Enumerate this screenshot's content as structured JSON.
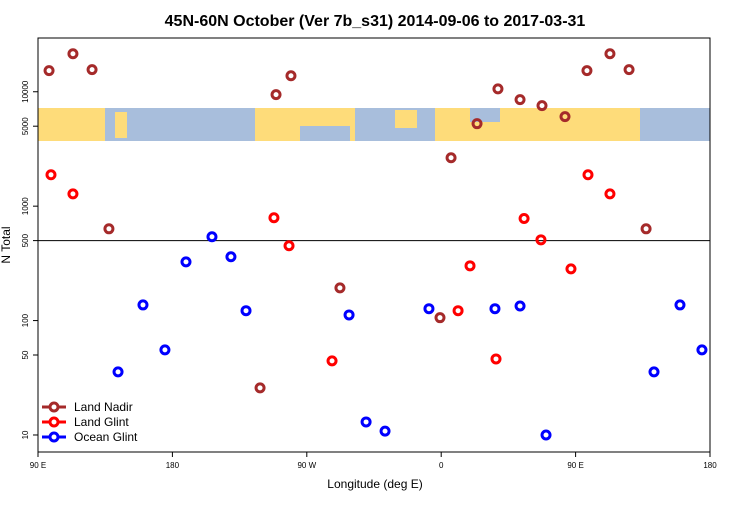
{
  "chart_data": {
    "type": "scatter",
    "title": "45N-60N October (Ver 7b_s31)   2014-09-06 to 2017-03-31",
    "xlabel": "Longitude (deg E)",
    "ylabel": "N Total",
    "xlim": [
      90,
      540
    ],
    "xticks": [
      {
        "value": 90,
        "label": "90 E"
      },
      180,
      {
        "value": 270,
        "label": "90 W"
      },
      {
        "value": 360,
        "label": "0"
      },
      {
        "value": 450,
        "label": "90 E"
      },
      {
        "value": 540,
        "label": "180"
      }
    ],
    "ylim": [
      7.1,
      29500
    ],
    "log_y": true,
    "yticks": [
      10,
      50,
      100,
      500,
      1000,
      5000,
      10000
    ],
    "hline": 500,
    "legend": "bottom-left",
    "series": [
      {
        "name": "Land Nadir",
        "color": "#a52a2a",
        "x": [
          97.4,
          113.4,
          126.2,
          137.5,
          238.7,
          249.4,
          259.4,
          292.2,
          359.2,
          366.6,
          384.0,
          398.0,
          412.8,
          427.5,
          442.9,
          457.6,
          473.0,
          485.8,
          497.2
        ],
        "values": [
          15300,
          21500,
          15600,
          634,
          25.8,
          9440,
          13800,
          193,
          106,
          2650,
          5260,
          10600,
          8530,
          7560,
          6060,
          15300,
          21500,
          15600,
          634
        ]
      },
      {
        "name": "Land Glint",
        "color": "#ff0000",
        "x": [
          98.7,
          113.4,
          248.0,
          258.1,
          286.9,
          371.3,
          379.3,
          396.7,
          415.5,
          426.8,
          446.9,
          458.3,
          473.0
        ],
        "values": [
          1880,
          1280,
          792,
          451,
          44.4,
          122,
          301,
          46.2,
          780,
          508,
          283,
          1880,
          1280
        ]
      },
      {
        "name": "Ocean Glint",
        "color": "#0000ff",
        "x": [
          143.6,
          160.3,
          175.0,
          189.1,
          206.5,
          219.2,
          229.3,
          298.3,
          309.7,
          322.4,
          351.8,
          396.0,
          412.8,
          430.2,
          502.5,
          519.9,
          534.6
        ],
        "values": [
          35.6,
          137,
          55.4,
          326,
          540,
          361,
          122,
          112,
          13,
          10.8,
          127,
          127,
          134,
          10,
          35.6,
          137,
          55.4
        ]
      }
    ]
  }
}
